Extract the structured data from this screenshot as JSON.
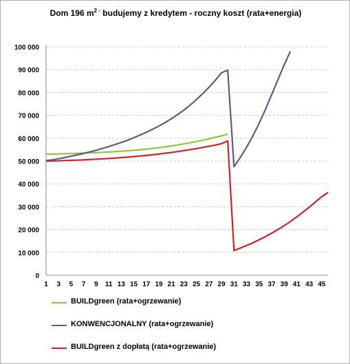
{
  "title": {
    "main": "Dom 196 m",
    "sup": "2 -",
    "rest": " budujemy z kredytem - roczny koszt (rata+energia)"
  },
  "colors": {
    "green": "#8dc63f",
    "purple": "#5c5a8c",
    "red": "#cc2229",
    "grid": "#c8c8c8"
  },
  "chart_data": {
    "type": "line",
    "title": "Dom 196 m2 - budujemy z kredytem - roczny koszt (rata+energia)",
    "xlabel": "",
    "ylabel": "",
    "xlim": [
      1,
      46
    ],
    "ylim": [
      0,
      100000
    ],
    "ytick_step": 10000,
    "y_tick_labels": [
      "0",
      "10 000",
      "20 000",
      "30 000",
      "40 000",
      "50 000",
      "60 000",
      "70 000",
      "80 000",
      "90 000",
      "100 000"
    ],
    "x_tick_labels": [
      1,
      3,
      5,
      7,
      9,
      11,
      13,
      15,
      17,
      19,
      21,
      23,
      25,
      27,
      29,
      31,
      33,
      35,
      37,
      39,
      41,
      43,
      45
    ],
    "grid": "horizontal dashed",
    "legend_position": "bottom",
    "series": [
      {
        "name": "BUILDgreen (rata+ogrzewanie)",
        "color": "#8dc63f",
        "x": [
          1,
          2,
          3,
          4,
          5,
          6,
          7,
          8,
          9,
          10,
          11,
          12,
          13,
          14,
          15,
          16,
          17,
          18,
          19,
          20,
          21,
          22,
          23,
          24,
          25,
          26,
          27,
          28,
          29,
          30
        ],
        "values": [
          53000,
          53050,
          53100,
          53200,
          53250,
          53350,
          53450,
          53550,
          53650,
          53800,
          53950,
          54100,
          54300,
          54500,
          54700,
          54950,
          55200,
          55500,
          55850,
          56200,
          56600,
          57050,
          57500,
          58000,
          58550,
          59100,
          59700,
          60350,
          61000,
          61800
        ]
      },
      {
        "name": "KONWENCJONALNY (rata+ogrzewanie)",
        "color": "#5c5a8c",
        "x": [
          1,
          2,
          3,
          4,
          5,
          6,
          7,
          8,
          9,
          10,
          11,
          12,
          13,
          14,
          15,
          16,
          17,
          18,
          19,
          20,
          21,
          22,
          23,
          24,
          25,
          26,
          27,
          28,
          29,
          30,
          31,
          32,
          33,
          34,
          35,
          36,
          37,
          38,
          39,
          40
        ],
        "values": [
          50200,
          50500,
          51000,
          51500,
          52100,
          52700,
          53300,
          54000,
          54700,
          55500,
          56300,
          57200,
          58100,
          59100,
          60200,
          61400,
          62600,
          63900,
          65300,
          66800,
          68500,
          70300,
          72300,
          74500,
          76900,
          79500,
          82300,
          85300,
          88600,
          89800,
          47500,
          51500,
          56000,
          61000,
          66500,
          72500,
          79000,
          85500,
          92000,
          98000
        ]
      },
      {
        "name": "BUILDgreen z dopłatą (rata+ogrzewanie)",
        "color": "#cc2229",
        "x": [
          1,
          2,
          3,
          4,
          5,
          6,
          7,
          8,
          9,
          10,
          11,
          12,
          13,
          14,
          15,
          16,
          17,
          18,
          19,
          20,
          21,
          22,
          23,
          24,
          25,
          26,
          27,
          28,
          29,
          30,
          31,
          32,
          33,
          34,
          35,
          36,
          37,
          38,
          39,
          40,
          41,
          42,
          43,
          44,
          45,
          46
        ],
        "values": [
          50000,
          50050,
          50100,
          50200,
          50300,
          50400,
          50500,
          50650,
          50800,
          50950,
          51100,
          51300,
          51500,
          51700,
          51950,
          52200,
          52450,
          52750,
          53050,
          53400,
          53750,
          54150,
          54550,
          55000,
          55450,
          55950,
          56450,
          57000,
          57600,
          58800,
          10800,
          11900,
          13000,
          14200,
          15500,
          16900,
          18400,
          20000,
          21700,
          23500,
          25500,
          27600,
          29800,
          32100,
          34400,
          36200
        ]
      }
    ]
  },
  "legend": [
    {
      "label": "BUILDgreen (rata+ogrzewanie)",
      "color": "#8dc63f"
    },
    {
      "label": "KONWENCJONALNY (rata+ogrzewanie)",
      "color": "#5c5a8c"
    },
    {
      "label": "BUILDgreen z dopłatą (rata+ogrzewanie)",
      "color": "#cc2229"
    }
  ]
}
